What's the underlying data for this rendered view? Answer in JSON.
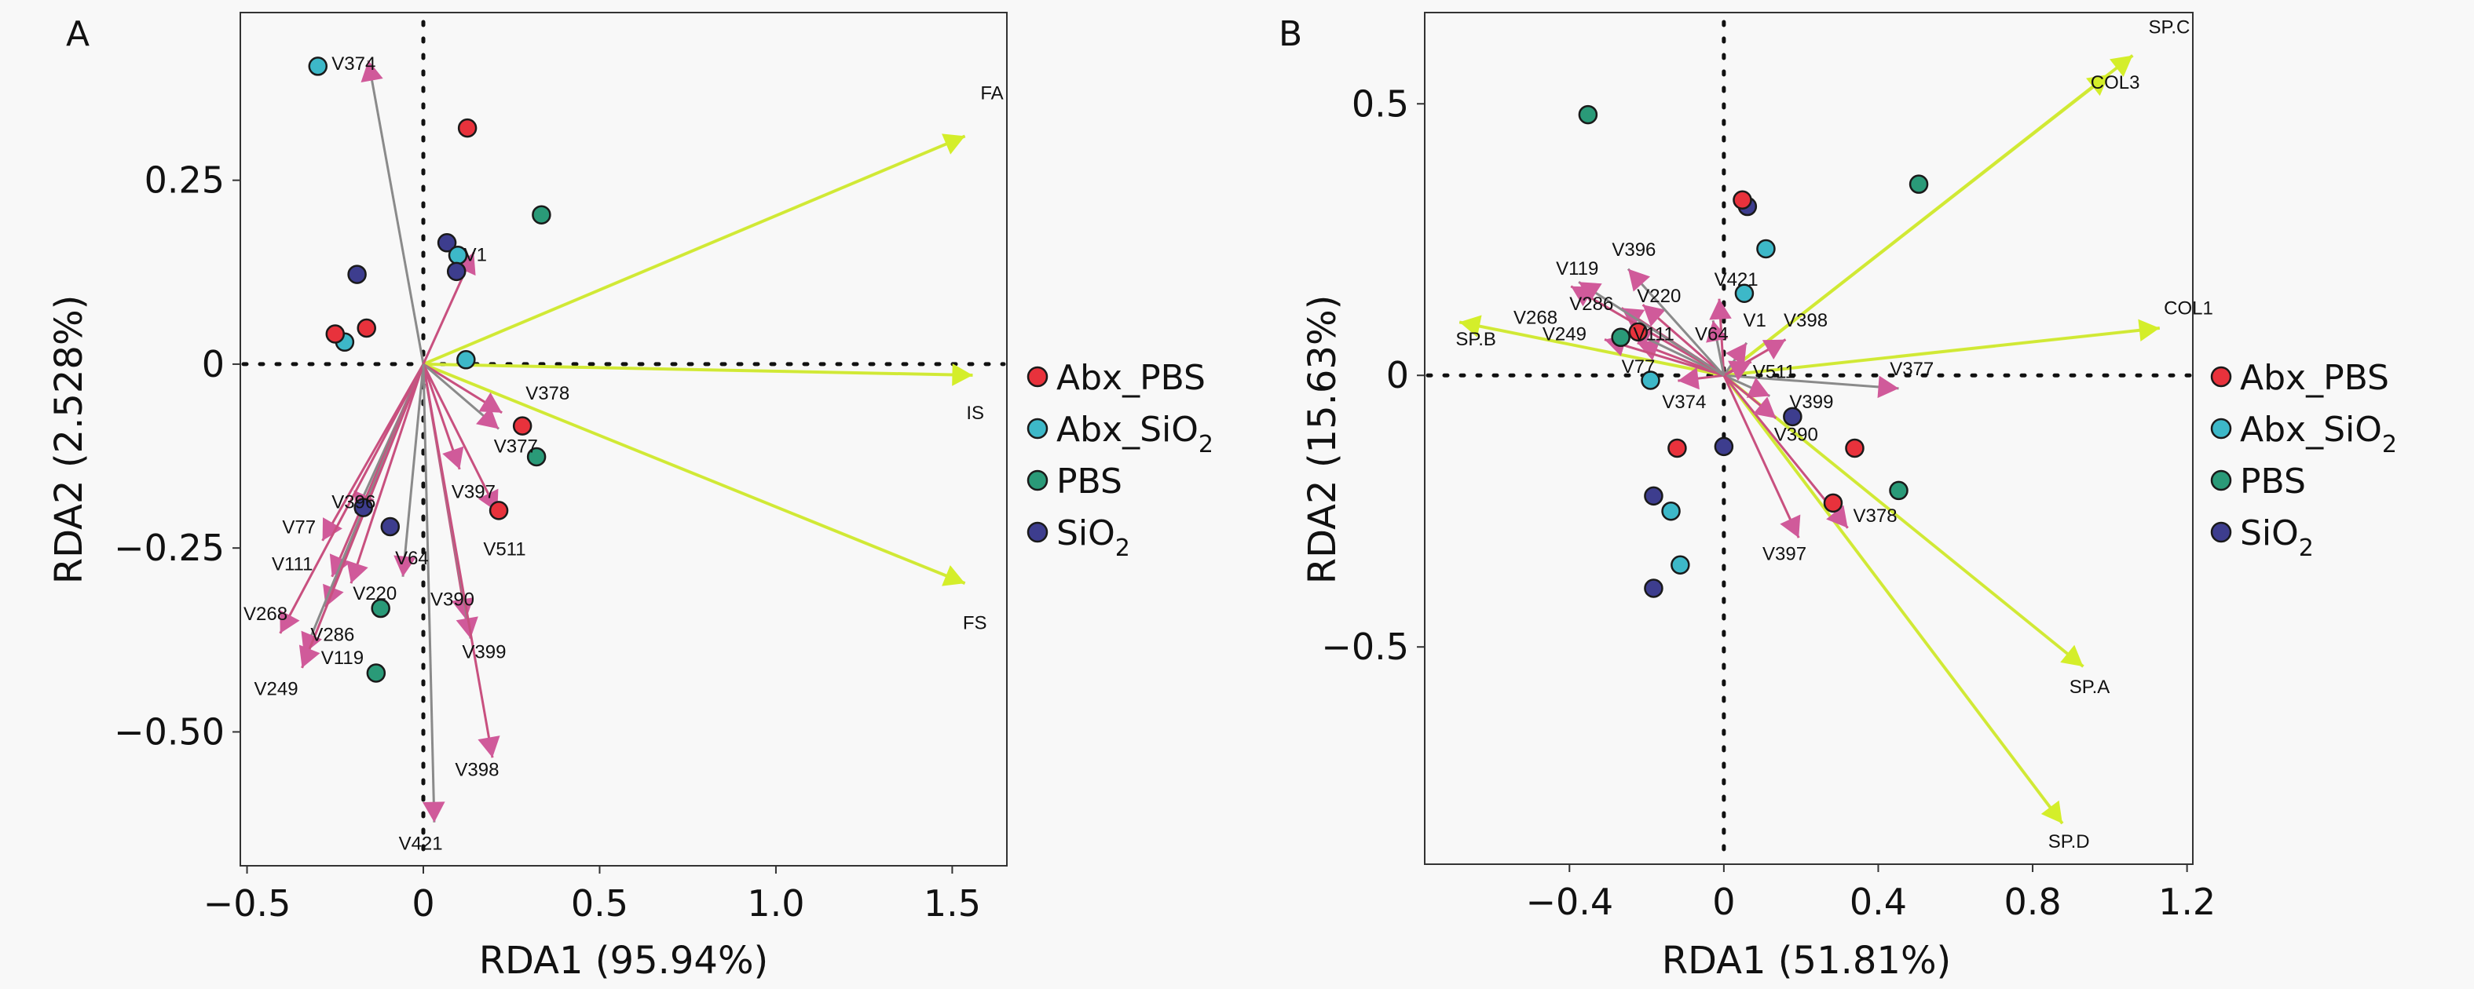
{
  "figure": {
    "legend": {
      "items": [
        {
          "label": "Abx_PBS",
          "sub": "",
          "color": "#e8323c"
        },
        {
          "label": "Abx_SiO",
          "sub": "2",
          "color": "#3db8c8"
        },
        {
          "label": "PBS",
          "sub": "",
          "color": "#2a9a78"
        },
        {
          "label": "SiO",
          "sub": "2",
          "color": "#3d3d8e"
        }
      ]
    },
    "colors": {
      "env_arrow": "#d4ee2a",
      "species_arrow_head": "#d05a9a",
      "species_shaft": "#8a8a8a",
      "background": "#f8f8f8"
    }
  },
  "chart_data": [
    {
      "type": "scatter",
      "panel": "A",
      "title": "A",
      "xlabel": "RDA1 (95.94%)",
      "ylabel": "RDA2 (2.528%)",
      "xlim": [
        -0.519,
        1.655
      ],
      "ylim": [
        -0.682,
        0.478
      ],
      "xticks": [
        {
          "v": -0.5,
          "t": "−0.5"
        },
        {
          "v": 0,
          "t": "0"
        },
        {
          "v": 0.5,
          "t": "0.5"
        },
        {
          "v": 1.0,
          "t": "1.0"
        },
        {
          "v": 1.5,
          "t": "1.5"
        }
      ],
      "yticks": [
        {
          "v": 0.25,
          "t": "0.25"
        },
        {
          "v": 0,
          "t": "0"
        },
        {
          "v": -0.25,
          "t": "−0.25"
        },
        {
          "v": -0.5,
          "t": "−0.50"
        }
      ],
      "legend_position": "right",
      "points": [
        {
          "group": "Abx_SiO2",
          "x": -0.299,
          "y": 0.405
        },
        {
          "group": "Abx_PBS",
          "x": 0.125,
          "y": 0.321
        },
        {
          "group": "PBS",
          "x": 0.335,
          "y": 0.203
        },
        {
          "group": "SiO2",
          "x": 0.067,
          "y": 0.165
        },
        {
          "group": "Abx_SiO2",
          "x": 0.098,
          "y": 0.148
        },
        {
          "group": "SiO2",
          "x": 0.094,
          "y": 0.126
        },
        {
          "group": "SiO2",
          "x": -0.188,
          "y": 0.122
        },
        {
          "group": "Abx_SiO2",
          "x": -0.223,
          "y": 0.03
        },
        {
          "group": "Abx_PBS",
          "x": -0.25,
          "y": 0.041
        },
        {
          "group": "Abx_PBS",
          "x": -0.161,
          "y": 0.049
        },
        {
          "group": "Abx_SiO2",
          "x": 0.121,
          "y": 0.006
        },
        {
          "group": "Abx_PBS",
          "x": 0.281,
          "y": -0.084
        },
        {
          "group": "PBS",
          "x": 0.321,
          "y": -0.126
        },
        {
          "group": "Abx_PBS",
          "x": 0.214,
          "y": -0.199
        },
        {
          "group": "SiO2",
          "x": -0.17,
          "y": -0.195
        },
        {
          "group": "SiO2",
          "x": -0.094,
          "y": -0.221
        },
        {
          "group": "PBS",
          "x": -0.121,
          "y": -0.332
        },
        {
          "group": "PBS",
          "x": -0.134,
          "y": -0.42
        }
      ],
      "env_vectors": [
        {
          "label": "FA",
          "x": 1.536,
          "y": 0.31,
          "lx": 1.58,
          "ly": 0.36
        },
        {
          "label": "IS",
          "x": 1.558,
          "y": -0.015,
          "lx": 1.54,
          "ly": -0.075
        },
        {
          "label": "FS",
          "x": 1.536,
          "y": -0.298,
          "lx": 1.53,
          "ly": -0.36
        }
      ],
      "species_vectors": [
        {
          "label": "V374",
          "x": -0.156,
          "y": 0.413,
          "lx": -0.26,
          "ly": 0.4
        },
        {
          "label": "V1",
          "x": 0.143,
          "y": 0.152,
          "lx": 0.115,
          "ly": 0.14
        },
        {
          "label": "V378",
          "x": 0.223,
          "y": -0.066,
          "lx": 0.29,
          "ly": -0.048
        },
        {
          "label": "V377",
          "x": 0.214,
          "y": -0.088,
          "lx": 0.2,
          "ly": -0.12
        },
        {
          "label": "V397",
          "x": 0.103,
          "y": -0.143,
          "lx": 0.08,
          "ly": -0.182
        },
        {
          "label": "V511",
          "x": 0.21,
          "y": -0.201,
          "lx": 0.17,
          "ly": -0.26
        },
        {
          "label": "V396",
          "x": -0.192,
          "y": -0.203,
          "lx": -0.26,
          "ly": -0.196
        },
        {
          "label": "V77",
          "x": -0.286,
          "y": -0.24,
          "lx": -0.4,
          "ly": -0.23
        },
        {
          "label": "V111",
          "x": -0.259,
          "y": -0.289,
          "lx": -0.43,
          "ly": -0.28
        },
        {
          "label": "V64",
          "x": -0.058,
          "y": -0.289,
          "lx": -0.08,
          "ly": -0.272
        },
        {
          "label": "V220",
          "x": -0.205,
          "y": -0.298,
          "lx": -0.2,
          "ly": -0.32
        },
        {
          "label": "V390",
          "x": 0.121,
          "y": -0.347,
          "lx": 0.02,
          "ly": -0.328
        },
        {
          "label": "V399",
          "x": 0.134,
          "y": -0.373,
          "lx": 0.11,
          "ly": -0.4
        },
        {
          "label": "V268",
          "x": -0.406,
          "y": -0.366,
          "lx": -0.51,
          "ly": -0.348
        },
        {
          "label": "V286",
          "x": -0.277,
          "y": -0.33,
          "lx": -0.32,
          "ly": -0.376
        },
        {
          "label": "V119",
          "x": -0.339,
          "y": -0.394,
          "lx": -0.29,
          "ly": -0.408
        },
        {
          "label": "V249",
          "x": -0.344,
          "y": -0.413,
          "lx": -0.48,
          "ly": -0.45
        },
        {
          "label": "V398",
          "x": 0.196,
          "y": -0.535,
          "lx": 0.09,
          "ly": -0.56
        },
        {
          "label": "V421",
          "x": 0.031,
          "y": -0.623,
          "lx": -0.07,
          "ly": -0.66
        }
      ]
    },
    {
      "type": "scatter",
      "panel": "B",
      "title": "B",
      "xlabel": "RDA1 (51.81%)",
      "ylabel": "RDA2 (15.63%)",
      "xlim": [
        -0.775,
        1.215
      ],
      "ylim": [
        -0.9,
        0.668
      ],
      "xticks": [
        {
          "v": -0.4,
          "t": "−0.4"
        },
        {
          "v": 0,
          "t": "0"
        },
        {
          "v": 0.4,
          "t": "0.4"
        },
        {
          "v": 0.8,
          "t": "0.8"
        },
        {
          "v": 1.2,
          "t": "1.2"
        }
      ],
      "yticks": [
        {
          "v": 0.5,
          "t": "0.5"
        },
        {
          "v": 0,
          "t": "0"
        },
        {
          "v": -0.5,
          "t": "−0.5"
        }
      ],
      "legend_position": "right",
      "points": [
        {
          "group": "PBS",
          "x": -0.352,
          "y": 0.48
        },
        {
          "group": "PBS",
          "x": 0.505,
          "y": 0.352
        },
        {
          "group": "SiO2",
          "x": 0.061,
          "y": 0.311
        },
        {
          "group": "Abx_PBS",
          "x": 0.048,
          "y": 0.323
        },
        {
          "group": "Abx_SiO2",
          "x": 0.109,
          "y": 0.233
        },
        {
          "group": "Abx_SiO2",
          "x": 0.053,
          "y": 0.151
        },
        {
          "group": "PBS",
          "x": -0.267,
          "y": 0.07
        },
        {
          "group": "Abx_PBS",
          "x": -0.222,
          "y": 0.08
        },
        {
          "group": "Abx_SiO2",
          "x": -0.19,
          "y": -0.009
        },
        {
          "group": "SiO2",
          "x": 0.178,
          "y": -0.076
        },
        {
          "group": "Abx_PBS",
          "x": -0.121,
          "y": -0.134
        },
        {
          "group": "SiO2",
          "x": 0.0,
          "y": -0.131
        },
        {
          "group": "Abx_PBS",
          "x": 0.339,
          "y": -0.134
        },
        {
          "group": "PBS",
          "x": 0.453,
          "y": -0.212
        },
        {
          "group": "Abx_PBS",
          "x": 0.283,
          "y": -0.235
        },
        {
          "group": "SiO2",
          "x": -0.182,
          "y": -0.222
        },
        {
          "group": "Abx_SiO2",
          "x": -0.137,
          "y": -0.25
        },
        {
          "group": "Abx_SiO2",
          "x": -0.113,
          "y": -0.349
        },
        {
          "group": "SiO2",
          "x": -0.182,
          "y": -0.392
        }
      ],
      "env_vectors": [
        {
          "label": "SP.C",
          "x": 1.059,
          "y": 0.589,
          "lx": 1.1,
          "ly": 0.63
        },
        {
          "label": "COL3",
          "x": 0.998,
          "y": 0.554,
          "lx": 0.95,
          "ly": 0.528
        },
        {
          "label": "COL1",
          "x": 1.129,
          "y": 0.087,
          "lx": 1.14,
          "ly": 0.112
        },
        {
          "label": "SP.B",
          "x": -0.685,
          "y": 0.098,
          "lx": -0.695,
          "ly": 0.055
        },
        {
          "label": "SP.A",
          "x": 0.931,
          "y": -0.536,
          "lx": 0.895,
          "ly": -0.585
        },
        {
          "label": "SP.D",
          "x": 0.877,
          "y": -0.825,
          "lx": 0.84,
          "ly": -0.87
        }
      ],
      "species_vectors": [
        {
          "label": "V377",
          "x": 0.453,
          "y": -0.024,
          "lx": 0.43,
          "ly": 0.0
        },
        {
          "label": "V378",
          "x": 0.321,
          "y": -0.281,
          "lx": 0.335,
          "ly": -0.27
        },
        {
          "label": "V397",
          "x": 0.194,
          "y": -0.299,
          "lx": 0.1,
          "ly": -0.34
        },
        {
          "label": "V399",
          "x": 0.119,
          "y": -0.038,
          "lx": 0.17,
          "ly": -0.06
        },
        {
          "label": "V390",
          "x": 0.135,
          "y": -0.079,
          "lx": 0.13,
          "ly": -0.12
        },
        {
          "label": "V398",
          "x": 0.16,
          "y": 0.066,
          "lx": 0.155,
          "ly": 0.09
        },
        {
          "label": "V1",
          "x": 0.059,
          "y": 0.06,
          "lx": 0.05,
          "ly": 0.09
        },
        {
          "label": "V511",
          "x": 0.071,
          "y": 0.025,
          "lx": 0.075,
          "ly": -0.005
        },
        {
          "label": "V421",
          "x": -0.012,
          "y": 0.141,
          "lx": -0.025,
          "ly": 0.165
        },
        {
          "label": "V64",
          "x": -0.028,
          "y": 0.101,
          "lx": -0.075,
          "ly": 0.065
        },
        {
          "label": "V374",
          "x": -0.119,
          "y": -0.01,
          "lx": -0.16,
          "ly": -0.06
        },
        {
          "label": "V77",
          "x": -0.224,
          "y": 0.06,
          "lx": -0.265,
          "ly": 0.005
        },
        {
          "label": "V111",
          "x": -0.244,
          "y": 0.083,
          "lx": -0.235,
          "ly": 0.065
        },
        {
          "label": "V249",
          "x": -0.309,
          "y": 0.066,
          "lx": -0.47,
          "ly": 0.065
        },
        {
          "label": "V220",
          "x": -0.21,
          "y": 0.13,
          "lx": -0.225,
          "ly": 0.135
        },
        {
          "label": "V396",
          "x": -0.248,
          "y": 0.196,
          "lx": -0.29,
          "ly": 0.22
        },
        {
          "label": "V286",
          "x": -0.265,
          "y": 0.124,
          "lx": -0.4,
          "ly": 0.12
        },
        {
          "label": "V268",
          "x": -0.396,
          "y": 0.164,
          "lx": -0.545,
          "ly": 0.095
        },
        {
          "label": "V119",
          "x": -0.376,
          "y": 0.172,
          "lx": -0.435,
          "ly": 0.185
        }
      ]
    }
  ]
}
